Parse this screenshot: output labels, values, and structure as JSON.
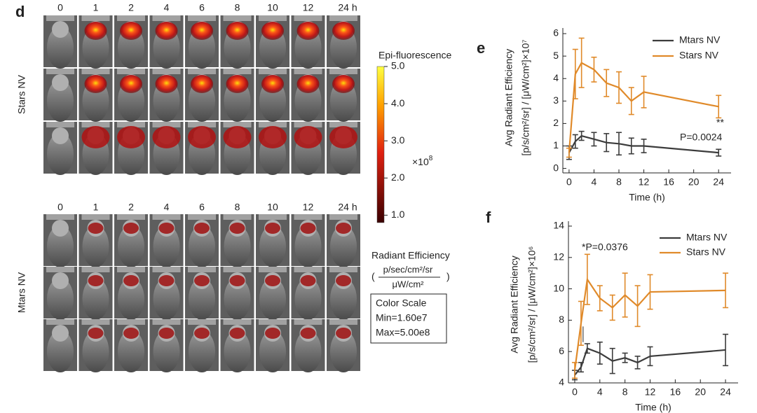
{
  "panel_d": {
    "label": "d",
    "groups": [
      {
        "name": "Stars NV",
        "times": [
          "0",
          "1",
          "2",
          "4",
          "6",
          "8",
          "10",
          "12",
          "24 h"
        ]
      },
      {
        "name": "Mtars NV",
        "times": [
          "0",
          "1",
          "2",
          "4",
          "6",
          "8",
          "10",
          "12",
          "24 h"
        ]
      }
    ],
    "colorbar": {
      "title": "Epi-fluorescence",
      "lim": [
        0.8,
        5.0
      ],
      "ticks": [
        {
          "value": 5,
          "label": "5.0"
        },
        {
          "value": 4,
          "label": "4.0"
        },
        {
          "value": 3,
          "label": "3.0"
        },
        {
          "value": 2,
          "label": "2.0"
        },
        {
          "value": 1,
          "label": "1.0"
        }
      ],
      "multiplier": "×10",
      "multiplier_exp": "8",
      "unit_label": "Radiant Efficiency",
      "unit_num": "p/sec/cm²/sr",
      "unit_den": "μW/cm²"
    },
    "color_scale": {
      "title": "Color Scale",
      "min": "Min=1.60e7",
      "max": "Max=5.00e8"
    }
  },
  "chart_data": [
    {
      "type": "line",
      "panel": "e",
      "ylabel": [
        "Avg Radiant Efficiency",
        "[p/s/cm²/sr] / [μW/cm²]×10⁷"
      ],
      "xlabel": "Time (h)",
      "x": [
        0,
        1,
        2,
        4,
        6,
        8,
        10,
        12,
        24
      ],
      "xlim": [
        -1,
        26
      ],
      "xticks": [
        0,
        4,
        8,
        12,
        16,
        20,
        24
      ],
      "ylim": [
        -0.2,
        6.5
      ],
      "yticks": [
        0,
        1,
        2,
        3,
        4,
        5,
        6
      ],
      "legend": "upper right",
      "series": [
        {
          "name": "Mtars NV",
          "color": "#3c3c3c",
          "values": [
            0.7,
            1.2,
            1.45,
            1.3,
            1.15,
            1.1,
            1.0,
            1.0,
            0.7
          ],
          "errors": [
            0.3,
            0.3,
            0.2,
            0.3,
            0.4,
            0.5,
            0.35,
            0.3,
            0.15
          ]
        },
        {
          "name": "Stars NV",
          "color": "#e08a2a",
          "values": [
            0.7,
            4.2,
            4.7,
            4.4,
            3.8,
            3.6,
            3.0,
            3.4,
            2.75
          ],
          "errors": [
            0.2,
            1.1,
            1.1,
            0.55,
            0.6,
            0.7,
            0.6,
            0.7,
            0.5
          ]
        }
      ],
      "annotations": [
        "**",
        "P=0.0024"
      ]
    },
    {
      "type": "line",
      "panel": "f",
      "ylabel": [
        "Avg Radiant Efficiency",
        "[p/s/cm²/sr] / [μW/cm²]×10⁶"
      ],
      "xlabel": "Time (h)",
      "x": [
        0,
        1,
        2,
        4,
        6,
        8,
        10,
        12,
        24
      ],
      "xlim": [
        -1,
        26
      ],
      "xticks": [
        0,
        4,
        8,
        12,
        16,
        20,
        24
      ],
      "ylim": [
        4,
        14
      ],
      "yticks": [
        4,
        6,
        8,
        10,
        12,
        14
      ],
      "legend": "upper right",
      "series": [
        {
          "name": "Mtars NV",
          "color": "#3c3c3c",
          "values": [
            4.5,
            5.0,
            6.2,
            5.9,
            5.4,
            5.6,
            5.3,
            5.7,
            6.1
          ],
          "errors": [
            0.3,
            0.3,
            0.3,
            0.7,
            0.8,
            0.3,
            0.4,
            0.6,
            1.0
          ]
        },
        {
          "name": "Stars NV",
          "color": "#e08a2a",
          "values": [
            4.8,
            7.8,
            10.6,
            9.4,
            8.8,
            9.6,
            8.9,
            9.8,
            9.9
          ],
          "errors": [
            0.5,
            1.4,
            1.6,
            0.8,
            0.8,
            1.4,
            1.3,
            1.1,
            1.1
          ]
        }
      ],
      "annotations": [
        "*P=0.0376"
      ]
    }
  ]
}
